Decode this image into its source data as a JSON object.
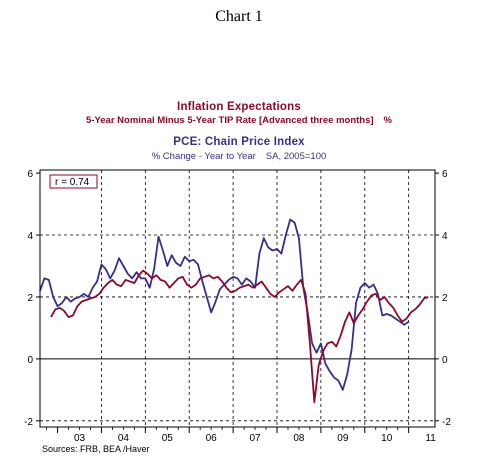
{
  "page_title": "Chart 1",
  "chart_data": {
    "type": "line",
    "title": "Inflation Expectations",
    "subtitle_1": "5-Year Nominal Minus 5-Year TIP Rate [Advanced three months]",
    "subtitle_1_unit": "%",
    "title_2": "PCE: Chain Price Index",
    "subtitle_2": "% Change - Year to Year",
    "subtitle_2_note": "SA, 2005=100",
    "annotation": "r = 0.74",
    "source": "Sources:  FRB, BEA /Haver",
    "x_ticks": [
      "03",
      "04",
      "05",
      "06",
      "07",
      "08",
      "09",
      "10",
      "11"
    ],
    "y_ticks_left": [
      "6",
      "4",
      "2",
      "0",
      "-2"
    ],
    "y_ticks_right": [
      "6",
      "4",
      "2",
      "0",
      "-2"
    ],
    "xlim": [
      2002.6,
      2011.6
    ],
    "ylim": [
      -2.2,
      6.1
    ],
    "grid": "dashed at x=04..11 and y=4, 2",
    "colors": {
      "pce": "#3a2e8c",
      "expectations": "#8b0a2a",
      "frame": "#000000"
    },
    "series": [
      {
        "name": "PCE: Chain Price Index",
        "color": "#3a2e8c",
        "points": [
          [
            2002.6,
            2.2
          ],
          [
            2002.7,
            2.6
          ],
          [
            2002.8,
            2.55
          ],
          [
            2002.9,
            2.0
          ],
          [
            2003.0,
            1.7
          ],
          [
            2003.1,
            1.8
          ],
          [
            2003.2,
            2.0
          ],
          [
            2003.3,
            1.85
          ],
          [
            2003.4,
            1.95
          ],
          [
            2003.5,
            2.0
          ],
          [
            2003.6,
            2.1
          ],
          [
            2003.7,
            2.0
          ],
          [
            2003.8,
            2.3
          ],
          [
            2003.9,
            2.5
          ],
          [
            2004.0,
            3.05
          ],
          [
            2004.1,
            2.9
          ],
          [
            2004.2,
            2.6
          ],
          [
            2004.3,
            2.85
          ],
          [
            2004.4,
            3.25
          ],
          [
            2004.5,
            3.0
          ],
          [
            2004.6,
            2.75
          ],
          [
            2004.7,
            2.6
          ],
          [
            2004.8,
            2.8
          ],
          [
            2004.9,
            2.6
          ],
          [
            2005.0,
            2.6
          ],
          [
            2005.1,
            2.3
          ],
          [
            2005.2,
            2.9
          ],
          [
            2005.3,
            3.95
          ],
          [
            2005.4,
            3.5
          ],
          [
            2005.5,
            3.0
          ],
          [
            2005.6,
            3.35
          ],
          [
            2005.7,
            3.1
          ],
          [
            2005.8,
            3.0
          ],
          [
            2005.9,
            3.3
          ],
          [
            2006.0,
            3.15
          ],
          [
            2006.1,
            3.2
          ],
          [
            2006.2,
            3.05
          ],
          [
            2006.3,
            2.5
          ],
          [
            2006.4,
            2.0
          ],
          [
            2006.5,
            1.5
          ],
          [
            2006.6,
            1.85
          ],
          [
            2006.7,
            2.25
          ],
          [
            2006.8,
            2.4
          ],
          [
            2006.9,
            2.55
          ],
          [
            2007.0,
            2.65
          ],
          [
            2007.1,
            2.6
          ],
          [
            2007.2,
            2.4
          ],
          [
            2007.3,
            2.6
          ],
          [
            2007.4,
            2.5
          ],
          [
            2007.5,
            2.3
          ],
          [
            2007.6,
            3.4
          ],
          [
            2007.7,
            3.9
          ],
          [
            2007.8,
            3.6
          ],
          [
            2007.9,
            3.5
          ],
          [
            2008.0,
            3.55
          ],
          [
            2008.1,
            3.4
          ],
          [
            2008.2,
            4.0
          ],
          [
            2008.3,
            4.5
          ],
          [
            2008.4,
            4.4
          ],
          [
            2008.5,
            3.9
          ],
          [
            2008.6,
            2.3
          ],
          [
            2008.7,
            1.5
          ],
          [
            2008.8,
            0.5
          ],
          [
            2008.9,
            0.2
          ],
          [
            2009.0,
            0.5
          ],
          [
            2009.1,
            -0.15
          ],
          [
            2009.2,
            -0.4
          ],
          [
            2009.3,
            -0.6
          ],
          [
            2009.4,
            -0.7
          ],
          [
            2009.5,
            -1.0
          ],
          [
            2009.6,
            -0.5
          ],
          [
            2009.7,
            0.3
          ],
          [
            2009.8,
            1.8
          ],
          [
            2009.9,
            2.3
          ],
          [
            2010.0,
            2.45
          ],
          [
            2010.1,
            2.3
          ],
          [
            2010.2,
            2.4
          ],
          [
            2010.3,
            2.1
          ],
          [
            2010.4,
            1.4
          ],
          [
            2010.5,
            1.45
          ],
          [
            2010.6,
            1.4
          ],
          [
            2010.7,
            1.3
          ],
          [
            2010.8,
            1.2
          ],
          [
            2010.9,
            1.1
          ],
          [
            2011.0,
            1.2
          ]
        ]
      },
      {
        "name": "Inflation Expectations",
        "color": "#8b0a2a",
        "points": [
          [
            2002.85,
            1.35
          ],
          [
            2002.95,
            1.6
          ],
          [
            2003.05,
            1.65
          ],
          [
            2003.15,
            1.55
          ],
          [
            2003.25,
            1.35
          ],
          [
            2003.35,
            1.4
          ],
          [
            2003.45,
            1.7
          ],
          [
            2003.55,
            1.85
          ],
          [
            2003.65,
            1.9
          ],
          [
            2003.75,
            1.95
          ],
          [
            2003.85,
            2.0
          ],
          [
            2003.95,
            2.1
          ],
          [
            2004.05,
            2.3
          ],
          [
            2004.15,
            2.45
          ],
          [
            2004.25,
            2.55
          ],
          [
            2004.35,
            2.4
          ],
          [
            2004.45,
            2.35
          ],
          [
            2004.55,
            2.55
          ],
          [
            2004.65,
            2.5
          ],
          [
            2004.75,
            2.45
          ],
          [
            2004.85,
            2.7
          ],
          [
            2004.95,
            2.85
          ],
          [
            2005.05,
            2.75
          ],
          [
            2005.15,
            2.6
          ],
          [
            2005.25,
            2.7
          ],
          [
            2005.35,
            2.55
          ],
          [
            2005.45,
            2.5
          ],
          [
            2005.55,
            2.3
          ],
          [
            2005.65,
            2.45
          ],
          [
            2005.75,
            2.6
          ],
          [
            2005.85,
            2.65
          ],
          [
            2005.95,
            2.4
          ],
          [
            2006.05,
            2.3
          ],
          [
            2006.15,
            2.4
          ],
          [
            2006.25,
            2.6
          ],
          [
            2006.35,
            2.65
          ],
          [
            2006.45,
            2.7
          ],
          [
            2006.55,
            2.6
          ],
          [
            2006.65,
            2.65
          ],
          [
            2006.75,
            2.5
          ],
          [
            2006.85,
            2.3
          ],
          [
            2006.95,
            2.15
          ],
          [
            2007.05,
            2.2
          ],
          [
            2007.15,
            2.3
          ],
          [
            2007.25,
            2.35
          ],
          [
            2007.35,
            2.4
          ],
          [
            2007.45,
            2.3
          ],
          [
            2007.55,
            2.4
          ],
          [
            2007.65,
            2.5
          ],
          [
            2007.75,
            2.3
          ],
          [
            2007.85,
            2.1
          ],
          [
            2007.95,
            2.0
          ],
          [
            2008.05,
            2.15
          ],
          [
            2008.15,
            2.25
          ],
          [
            2008.25,
            2.35
          ],
          [
            2008.35,
            2.2
          ],
          [
            2008.45,
            2.4
          ],
          [
            2008.55,
            2.55
          ],
          [
            2008.65,
            2.1
          ],
          [
            2008.75,
            0.5
          ],
          [
            2008.85,
            -1.4
          ],
          [
            2008.95,
            -0.2
          ],
          [
            2009.05,
            0.25
          ],
          [
            2009.15,
            0.5
          ],
          [
            2009.25,
            0.55
          ],
          [
            2009.35,
            0.4
          ],
          [
            2009.45,
            0.75
          ],
          [
            2009.55,
            1.2
          ],
          [
            2009.65,
            1.5
          ],
          [
            2009.75,
            1.15
          ],
          [
            2009.85,
            1.4
          ],
          [
            2009.95,
            1.6
          ],
          [
            2010.05,
            1.85
          ],
          [
            2010.15,
            2.05
          ],
          [
            2010.25,
            2.1
          ],
          [
            2010.35,
            1.9
          ],
          [
            2010.45,
            2.0
          ],
          [
            2010.55,
            1.8
          ],
          [
            2010.65,
            1.65
          ],
          [
            2010.75,
            1.4
          ],
          [
            2010.85,
            1.2
          ],
          [
            2010.95,
            1.3
          ],
          [
            2011.05,
            1.5
          ],
          [
            2011.15,
            1.6
          ],
          [
            2011.25,
            1.75
          ],
          [
            2011.35,
            1.95
          ],
          [
            2011.45,
            2.0
          ]
        ]
      }
    ]
  }
}
